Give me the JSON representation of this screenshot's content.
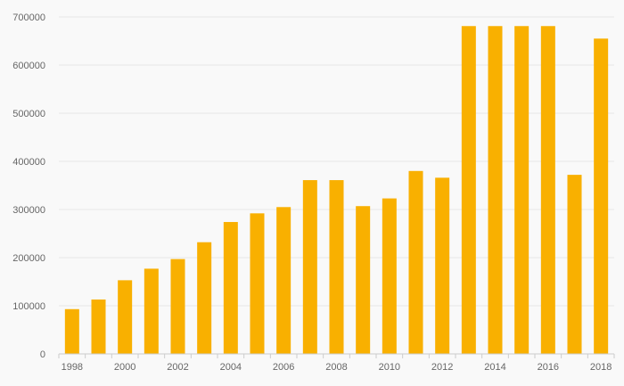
{
  "chart_data": {
    "type": "bar",
    "title": "",
    "xlabel": "",
    "ylabel": "",
    "categories": [
      "1998",
      "1999",
      "2000",
      "2001",
      "2002",
      "2003",
      "2004",
      "2005",
      "2006",
      "2007",
      "2008",
      "2009",
      "2010",
      "2011",
      "2012",
      "2013",
      "2014",
      "2015",
      "2016",
      "2017",
      "2018"
    ],
    "x_tick_labels": [
      "1998",
      "2000",
      "2002",
      "2004",
      "2006",
      "2008",
      "2010",
      "2012",
      "2014",
      "2016",
      "2018"
    ],
    "values": [
      93000,
      113000,
      153000,
      177000,
      197000,
      232000,
      274000,
      292000,
      305000,
      361000,
      361000,
      307000,
      323000,
      380000,
      366000,
      681000,
      681000,
      681000,
      681000,
      372000,
      655000
    ],
    "ylim": [
      0,
      700000
    ],
    "y_ticks": [
      "0",
      "100000",
      "200000",
      "300000",
      "400000",
      "500000",
      "600000",
      "700000"
    ],
    "grid": true,
    "legend": "none",
    "bar_color": "#f9b000",
    "grid_color": "#e6e6e6",
    "background": "#f9f9f9"
  }
}
